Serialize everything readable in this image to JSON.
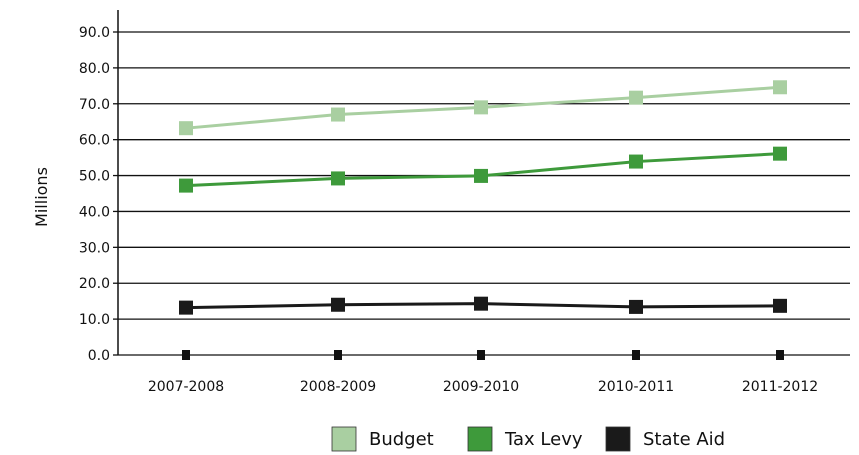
{
  "chart_data": {
    "type": "line",
    "title": "",
    "xlabel": "",
    "ylabel": "Millions",
    "categories": [
      "2007-2008",
      "2008-2009",
      "2009-2010",
      "2010-2011",
      "2011-2012"
    ],
    "ylim": [
      0,
      90
    ],
    "yticks": [
      "0.0",
      "10.0",
      "20.0",
      "30.0",
      "40.0",
      "50.0",
      "60.0",
      "70.0",
      "80.0",
      "90.0"
    ],
    "grid": true,
    "legend_position": "bottom",
    "series": [
      {
        "name": "Budget",
        "color": "#a9cfa1",
        "values": [
          63.2,
          67.0,
          69.0,
          71.7,
          74.6
        ]
      },
      {
        "name": "Tax Levy",
        "color": "#3e9a3b",
        "values": [
          47.2,
          49.2,
          49.9,
          53.9,
          56.1
        ]
      },
      {
        "name": "State Aid",
        "color": "#1a1a1a",
        "values": [
          13.2,
          14.0,
          14.3,
          13.4,
          13.7
        ]
      }
    ]
  }
}
